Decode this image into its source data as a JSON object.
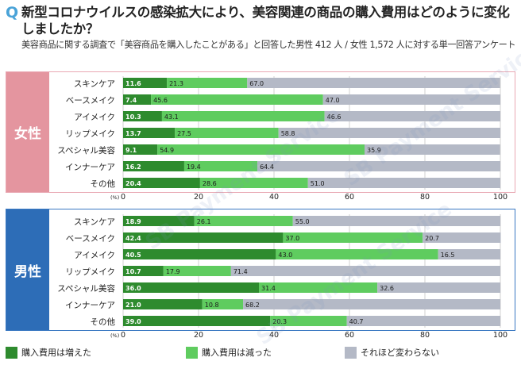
{
  "header": {
    "q_mark": "Q",
    "title": "新型コロナウイルスの感染拡大により、美容関連の商品の購入費用はどのように変化しましたか？",
    "subtitle": "美容商品に関する調査で「美容商品を購入したことがある」と回答した男性 412 人 / 女性 1,572 人に対する単一回答アンケート"
  },
  "panels": {
    "female_label": "女性",
    "male_label": "男性"
  },
  "colors": {
    "increased": "#2e8b2e",
    "decreased": "#5fcc5f",
    "unchanged": "#b4b9c6",
    "female_accent": "#e4959f",
    "male_accent": "#2d6db7"
  },
  "watermark": "SB Payment Service",
  "chart_data": {
    "type": "bar",
    "orientation": "horizontal",
    "stacked": true,
    "unit_label": "(%)",
    "xlim": [
      0,
      100
    ],
    "xticks": [
      "0",
      "20",
      "40",
      "60",
      "80",
      "100"
    ],
    "categories": [
      "スキンケア",
      "ベースメイク",
      "アイメイク",
      "リップメイク",
      "スペシャル美容",
      "インナーケア",
      "その他"
    ],
    "groups": [
      {
        "name": "女性",
        "series": [
          {
            "name": "購入費用は増えた",
            "values": [
              11.6,
              7.4,
              10.3,
              13.7,
              9.1,
              16.2,
              20.4
            ]
          },
          {
            "name": "購入費用は減った",
            "values": [
              21.3,
              45.6,
              43.1,
              27.5,
              54.9,
              19.4,
              28.6
            ]
          },
          {
            "name": "それほど変わらない",
            "values": [
              67.0,
              47.0,
              46.6,
              58.8,
              35.9,
              64.4,
              51.0
            ]
          }
        ]
      },
      {
        "name": "男性",
        "series": [
          {
            "name": "購入費用は増えた",
            "values": [
              18.9,
              42.4,
              40.5,
              10.7,
              36.0,
              21.0,
              39.0
            ]
          },
          {
            "name": "購入費用は減った",
            "values": [
              26.1,
              37.0,
              43.0,
              17.9,
              31.4,
              10.8,
              20.3
            ]
          },
          {
            "name": "それほど変わらない",
            "values": [
              55.0,
              20.7,
              16.5,
              71.4,
              32.6,
              68.2,
              40.7
            ]
          }
        ]
      }
    ],
    "legend": [
      "購入費用は増えた",
      "購入費用は減った",
      "それほど変わらない"
    ],
    "legend_position": "bottom"
  }
}
